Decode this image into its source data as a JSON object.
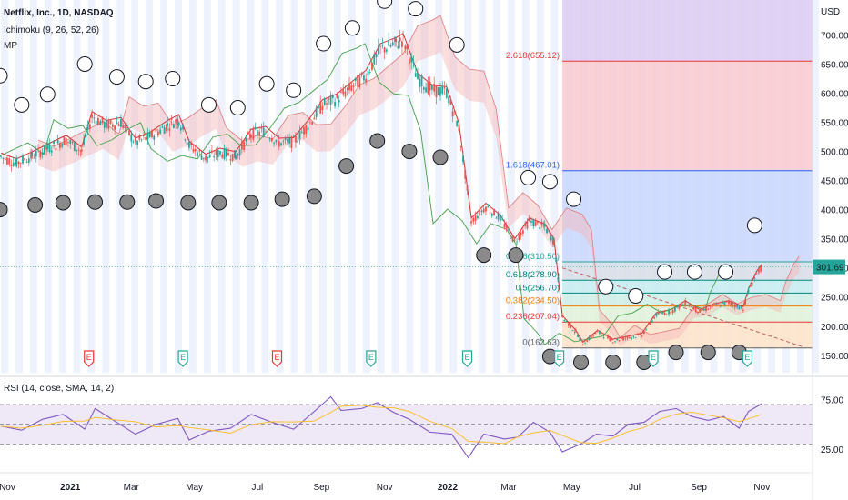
{
  "chart_data": {
    "type": "line",
    "symbol": "Netflix, Inc., 1D, NASDAQ",
    "indicators": [
      "Ichimoku (9, 26, 52, 26)",
      "MP"
    ],
    "currency": "USD",
    "last_price": "301.69",
    "y_ticks": [
      "700.00",
      "650.00",
      "600.00",
      "550.00",
      "500.00",
      "450.00",
      "400.00",
      "350.00",
      "300.00",
      "250.00",
      "200.00",
      "150.00"
    ],
    "y_tick_values": [
      700,
      650,
      600,
      550,
      500,
      450,
      400,
      350,
      300,
      250,
      200,
      150
    ],
    "ylim": [
      120,
      760
    ],
    "x_labels": [
      "Nov",
      "2021",
      "Mar",
      "May",
      "Jul",
      "Sep",
      "Nov",
      "2022",
      "Mar",
      "May",
      "Jul",
      "Sep",
      "Nov"
    ],
    "x_label_dates": [
      "2020-11-01",
      "2021-01-01",
      "2021-03-01",
      "2021-05-01",
      "2021-07-01",
      "2021-09-01",
      "2021-11-01",
      "2022-01-01",
      "2022-03-01",
      "2022-05-01",
      "2022-07-01",
      "2022-09-01",
      "2022-11-01"
    ],
    "xlim": [
      "2020-10-25",
      "2022-12-20"
    ],
    "fib_levels": [
      {
        "label": "2.618(655.12)",
        "value": 655.12,
        "color": "#e53935"
      },
      {
        "label": "1.618(467.01)",
        "value": 467.01,
        "color": "#2962ff"
      },
      {
        "label": "0.786(310.50)",
        "value": 310.5,
        "color": "#26a69a"
      },
      {
        "label": "0.618(278.90)",
        "value": 278.9,
        "color": "#00897b"
      },
      {
        "label": "0.5(256.70)",
        "value": 256.7,
        "color": "#00897b"
      },
      {
        "label": "0.382(234.50)",
        "value": 234.5,
        "color": "#f57c00"
      },
      {
        "label": "0.236(207.04)",
        "value": 207.04,
        "color": "#e53935"
      },
      {
        "label": "0(162.63)",
        "value": 162.63,
        "color": "#616161"
      }
    ],
    "fib_start_date": "2022-04-22",
    "earnings_label": "E",
    "earnings_dates": [
      "2020-10-20",
      "2021-01-19",
      "2021-04-20",
      "2021-07-20",
      "2021-10-19",
      "2022-01-20",
      "2022-04-19",
      "2022-07-19",
      "2022-10-18"
    ],
    "earnings_colors": [
      "#e53935",
      "#e53935",
      "#26a69a",
      "#e53935",
      "#26a69a",
      "#26a69a",
      "#26a69a",
      "#26a69a",
      "#26a69a"
    ],
    "price_path": [
      [
        "2020-10-26",
        490
      ],
      [
        "2020-11-10",
        480
      ],
      [
        "2020-11-25",
        492
      ],
      [
        "2020-12-10",
        505
      ],
      [
        "2020-12-28",
        520
      ],
      [
        "2021-01-12",
        500
      ],
      [
        "2021-01-22",
        560
      ],
      [
        "2021-02-05",
        545
      ],
      [
        "2021-02-19",
        550
      ],
      [
        "2021-03-05",
        515
      ],
      [
        "2021-03-19",
        525
      ],
      [
        "2021-04-05",
        545
      ],
      [
        "2021-04-16",
        555
      ],
      [
        "2021-04-26",
        510
      ],
      [
        "2021-05-12",
        488
      ],
      [
        "2021-05-26",
        498
      ],
      [
        "2021-06-10",
        492
      ],
      [
        "2021-06-25",
        530
      ],
      [
        "2021-07-09",
        535
      ],
      [
        "2021-07-22",
        515
      ],
      [
        "2021-08-05",
        516
      ],
      [
        "2021-08-19",
        545
      ],
      [
        "2021-09-02",
        580
      ],
      [
        "2021-09-16",
        590
      ],
      [
        "2021-09-30",
        610
      ],
      [
        "2021-10-14",
        630
      ],
      [
        "2021-10-28",
        675
      ],
      [
        "2021-11-12",
        685
      ],
      [
        "2021-11-19",
        692
      ],
      [
        "2021-12-03",
        625
      ],
      [
        "2021-12-17",
        605
      ],
      [
        "2021-12-31",
        602
      ],
      [
        "2022-01-12",
        540
      ],
      [
        "2022-01-24",
        380
      ],
      [
        "2022-02-07",
        405
      ],
      [
        "2022-02-21",
        385
      ],
      [
        "2022-03-07",
        345
      ],
      [
        "2022-03-21",
        380
      ],
      [
        "2022-04-05",
        370
      ],
      [
        "2022-04-14",
        345
      ],
      [
        "2022-04-22",
        215
      ],
      [
        "2022-05-05",
        190
      ],
      [
        "2022-05-12",
        170
      ],
      [
        "2022-05-26",
        190
      ],
      [
        "2022-06-10",
        175
      ],
      [
        "2022-06-24",
        180
      ],
      [
        "2022-07-08",
        185
      ],
      [
        "2022-07-22",
        220
      ],
      [
        "2022-08-05",
        225
      ],
      [
        "2022-08-19",
        240
      ],
      [
        "2022-09-02",
        225
      ],
      [
        "2022-09-16",
        235
      ],
      [
        "2022-09-30",
        240
      ],
      [
        "2022-10-14",
        230
      ],
      [
        "2022-10-19",
        260
      ],
      [
        "2022-10-27",
        290
      ],
      [
        "2022-11-01",
        301.69
      ]
    ],
    "rsi": {
      "label": "RSI (14, close, SMA, 14, 2)",
      "y_ticks": [
        "75.00",
        "25.00"
      ],
      "y_tick_values": [
        75,
        25
      ],
      "band_upper": 70,
      "band_lower": 30,
      "mid": 50,
      "ylim": [
        10,
        95
      ],
      "path": [
        [
          "2020-10-26",
          48
        ],
        [
          "2020-11-15",
          44
        ],
        [
          "2020-12-05",
          55
        ],
        [
          "2020-12-25",
          60
        ],
        [
          "2021-01-15",
          45
        ],
        [
          "2021-01-25",
          66
        ],
        [
          "2021-02-15",
          52
        ],
        [
          "2021-03-05",
          40
        ],
        [
          "2021-03-25",
          50
        ],
        [
          "2021-04-15",
          56
        ],
        [
          "2021-04-26",
          34
        ],
        [
          "2021-05-15",
          43
        ],
        [
          "2021-06-05",
          46
        ],
        [
          "2021-06-25",
          60
        ],
        [
          "2021-07-15",
          52
        ],
        [
          "2021-08-05",
          45
        ],
        [
          "2021-08-25",
          63
        ],
        [
          "2021-09-10",
          78
        ],
        [
          "2021-09-20",
          64
        ],
        [
          "2021-10-10",
          66
        ],
        [
          "2021-10-25",
          72
        ],
        [
          "2021-11-10",
          62
        ],
        [
          "2021-11-25",
          55
        ],
        [
          "2021-12-15",
          42
        ],
        [
          "2022-01-05",
          40
        ],
        [
          "2022-01-21",
          16
        ],
        [
          "2022-02-05",
          40
        ],
        [
          "2022-02-25",
          35
        ],
        [
          "2022-03-10",
          37
        ],
        [
          "2022-03-25",
          52
        ],
        [
          "2022-04-10",
          42
        ],
        [
          "2022-04-22",
          22
        ],
        [
          "2022-05-10",
          30
        ],
        [
          "2022-05-25",
          40
        ],
        [
          "2022-06-10",
          38
        ],
        [
          "2022-06-25",
          50
        ],
        [
          "2022-07-10",
          52
        ],
        [
          "2022-07-25",
          63
        ],
        [
          "2022-08-10",
          66
        ],
        [
          "2022-08-25",
          58
        ],
        [
          "2022-09-10",
          54
        ],
        [
          "2022-09-25",
          58
        ],
        [
          "2022-10-10",
          46
        ],
        [
          "2022-10-19",
          63
        ],
        [
          "2022-11-01",
          71
        ]
      ]
    },
    "mp_points_above": [
      [
        "2020-10-25",
        630
      ],
      [
        "2020-11-15",
        580
      ],
      [
        "2020-12-10",
        598
      ],
      [
        "2021-01-15",
        650
      ],
      [
        "2021-02-15",
        628
      ],
      [
        "2021-03-15",
        620
      ],
      [
        "2021-04-10",
        625
      ],
      [
        "2021-05-15",
        580
      ],
      [
        "2021-06-12",
        575
      ],
      [
        "2021-07-10",
        616
      ],
      [
        "2021-08-05",
        605
      ],
      [
        "2021-09-03",
        685
      ],
      [
        "2021-10-01",
        712
      ],
      [
        "2021-11-01",
        758
      ],
      [
        "2021-12-01",
        745
      ],
      [
        "2022-01-10",
        683
      ],
      [
        "2022-03-20",
        455
      ],
      [
        "2022-04-10",
        448
      ],
      [
        "2022-05-03",
        418
      ],
      [
        "2022-06-03",
        268
      ],
      [
        "2022-07-02",
        252
      ],
      [
        "2022-07-30",
        293
      ],
      [
        "2022-08-28",
        293
      ],
      [
        "2022-09-27",
        293
      ],
      [
        "2022-10-25",
        373
      ]
    ],
    "mp_points_below": [
      [
        "2020-10-25",
        400
      ],
      [
        "2020-11-28",
        408
      ],
      [
        "2020-12-25",
        412
      ],
      [
        "2021-01-25",
        413
      ],
      [
        "2021-02-25",
        413
      ],
      [
        "2021-03-25",
        415
      ],
      [
        "2021-04-25",
        412
      ],
      [
        "2021-05-25",
        412
      ],
      [
        "2021-06-25",
        412
      ],
      [
        "2021-07-25",
        418
      ],
      [
        "2021-08-25",
        423
      ],
      [
        "2021-09-25",
        475
      ],
      [
        "2021-10-25",
        518
      ],
      [
        "2021-11-25",
        500
      ],
      [
        "2021-12-25",
        490
      ],
      [
        "2022-02-05",
        322
      ],
      [
        "2022-03-08",
        322
      ],
      [
        "2022-04-10",
        148
      ],
      [
        "2022-05-10",
        138
      ],
      [
        "2022-06-10",
        138
      ],
      [
        "2022-07-10",
        138
      ],
      [
        "2022-08-10",
        155
      ],
      [
        "2022-09-10",
        155
      ],
      [
        "2022-10-10",
        155
      ]
    ]
  }
}
